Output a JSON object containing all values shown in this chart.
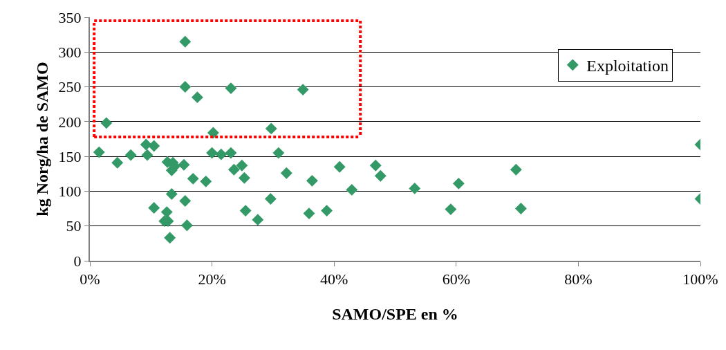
{
  "chart_data": {
    "type": "scatter",
    "xlabel": "SAMO/SPE en %",
    "ylabel": "kg Norg/ha de SAMO",
    "xlim": [
      0,
      100
    ],
    "xticks": [
      {
        "value": 0,
        "label": "0%"
      },
      {
        "value": 20,
        "label": "20%"
      },
      {
        "value": 40,
        "label": "40%"
      },
      {
        "value": 60,
        "label": "60%"
      },
      {
        "value": 80,
        "label": "80%"
      },
      {
        "value": 100,
        "label": "100%"
      }
    ],
    "ylim": [
      0,
      350
    ],
    "yticks": [
      0,
      50,
      100,
      150,
      200,
      250,
      300,
      350
    ],
    "grid": "y",
    "legend": "top right",
    "marker": "diamond",
    "series": [
      {
        "name": "Exploitation",
        "color": "#339966",
        "x": [
          1.5,
          2.7,
          4.5,
          6.7,
          9.2,
          9.4,
          10.5,
          10.5,
          12.2,
          12.6,
          12.7,
          12.8,
          13.1,
          13.4,
          13.4,
          13.6,
          13.9,
          15.4,
          15.6,
          15.6,
          15.6,
          15.9,
          16.9,
          17.6,
          19.0,
          20.2,
          20.0,
          21.5,
          23.1,
          23.1,
          23.6,
          24.9,
          25.3,
          25.5,
          27.5,
          29.6,
          29.7,
          30.9,
          32.2,
          34.9,
          35.9,
          36.4,
          38.8,
          40.9,
          42.9,
          46.8,
          47.6,
          53.2,
          59.1,
          60.4,
          69.8,
          70.6,
          100,
          100
        ],
        "values": [
          156,
          198,
          141,
          152,
          167,
          152,
          165,
          76,
          57,
          70,
          142,
          57,
          33,
          96,
          130,
          141,
          136,
          138,
          315,
          250,
          86,
          51,
          118,
          235,
          114,
          184,
          155,
          153,
          155,
          248,
          131,
          137,
          119,
          72,
          59,
          89,
          190,
          155,
          126,
          246,
          68,
          115,
          72,
          135,
          102,
          137,
          122,
          104,
          74,
          111,
          131,
          75,
          167,
          89
        ]
      },
      {
        "type": "line",
        "color": "#ff0000",
        "line_style": "dotted",
        "marker": "none",
        "x": [
          0.7,
          0.7,
          44.3,
          44.3
        ],
        "values": [
          178,
          345,
          345,
          178
        ]
      },
      {
        "type": "line",
        "color": "#ff0000",
        "line_style": "dotted",
        "marker": "none",
        "x": [
          0.7,
          44.3
        ],
        "values": [
          178,
          178
        ]
      }
    ]
  }
}
